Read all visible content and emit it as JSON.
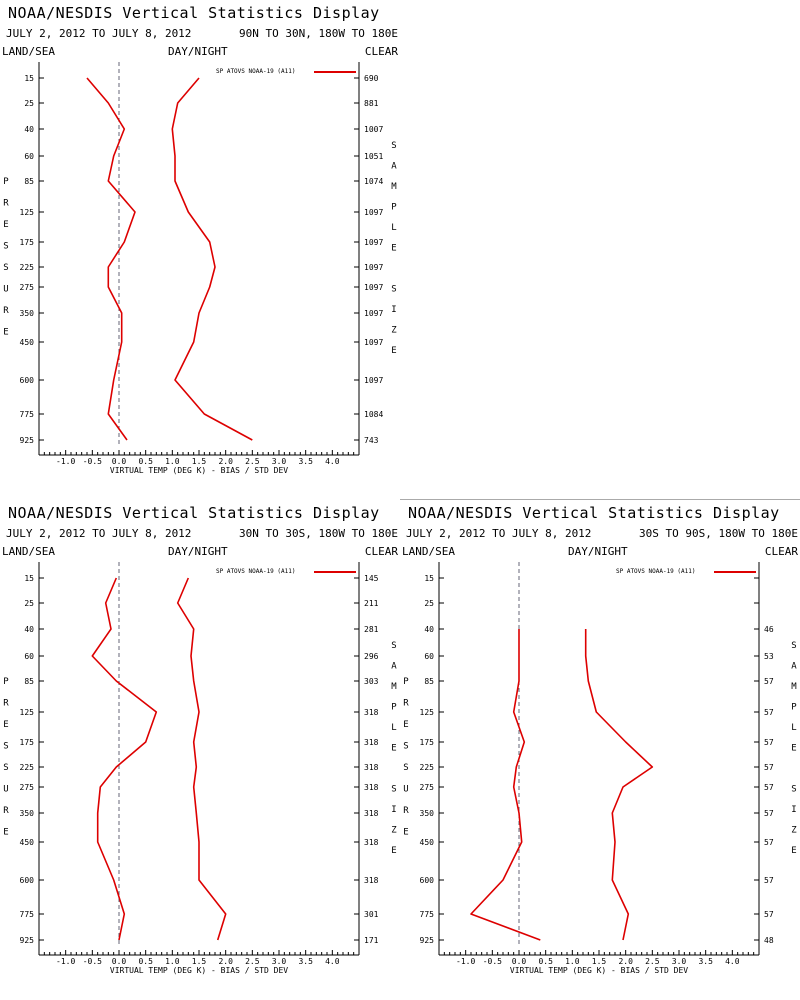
{
  "colors": {
    "series": "#dd0000",
    "axis": "#000000",
    "zero_line": "#666677"
  },
  "panels": [
    {
      "title": "NOAA/NESDIS Vertical Statistics Display",
      "date_range": "JULY 2, 2012 TO JULY 8, 2012",
      "region": "90N TO 30N, 180W TO 180E",
      "left_header": "LAND/SEA",
      "mid_header": "DAY/NIGHT",
      "right_header": "CLEAR",
      "left_axis_title": "PRESSURE",
      "right_axis_title": "SAMPLE SIZE",
      "xlabel": "VIRTUAL TEMP (DEG K) - BIAS / STD DEV",
      "legend": "SP ATOVS NOAA-19 (A11)"
    },
    {
      "title": "NOAA/NESDIS Vertical Statistics Display",
      "date_range": "JULY 2, 2012 TO JULY 8, 2012",
      "region": "30N TO 30S, 180W TO 180E",
      "left_header": "LAND/SEA",
      "mid_header": "DAY/NIGHT",
      "right_header": "CLEAR",
      "left_axis_title": "PRESSURE",
      "right_axis_title": "SAMPLE SIZE",
      "xlabel": "VIRTUAL TEMP (DEG K) - BIAS / STD DEV",
      "legend": "SP ATOVS NOAA-19 (A11)"
    },
    {
      "title": "NOAA/NESDIS Vertical Statistics Display",
      "date_range": "JULY 2, 2012 TO JULY 8, 2012",
      "region": "30S TO 90S, 180W TO 180E",
      "left_header": "LAND/SEA",
      "mid_header": "DAY/NIGHT",
      "right_header": "CLEAR",
      "left_axis_title": "PRESSURE",
      "right_axis_title": "SAMPLE SIZE",
      "xlabel": "VIRTUAL TEMP (DEG K) - BIAS / STD DEV",
      "legend": "SP ATOVS NOAA-19 (A11)"
    }
  ],
  "chart_data": [
    {
      "type": "line",
      "xlim": [
        -1.5,
        4.5
      ],
      "x_ticks": [
        "-1.0",
        "-0.5",
        "0.0",
        "0.5",
        "1.0",
        "1.5",
        "2.0",
        "2.5",
        "3.0",
        "3.5",
        "4.0"
      ],
      "pressure_levels": [
        "15",
        "25",
        "40",
        "60",
        "85",
        "125",
        "175",
        "225",
        "275",
        "350",
        "450",
        "600",
        "775",
        "925"
      ],
      "sample_size": [
        "690",
        "881",
        "1007",
        "1051",
        "1074",
        "1097",
        "1097",
        "1097",
        "1097",
        "1097",
        "1097",
        "1097",
        "1084",
        "743"
      ],
      "series": [
        {
          "name": "SP ATOVS NOAA-19 (A11)",
          "metric": "bias",
          "levels": [
            "15",
            "25",
            "40",
            "60",
            "85",
            "125",
            "175",
            "225",
            "275",
            "350",
            "450",
            "600",
            "775",
            "925"
          ],
          "values": [
            -0.6,
            -0.2,
            0.1,
            -0.1,
            -0.2,
            0.3,
            0.1,
            -0.2,
            -0.2,
            0.05,
            0.05,
            -0.1,
            -0.2,
            0.15
          ]
        },
        {
          "name": "SP ATOVS NOAA-19 (A11)",
          "metric": "std_dev",
          "levels": [
            "15",
            "25",
            "40",
            "60",
            "85",
            "125",
            "175",
            "225",
            "275",
            "350",
            "450",
            "600",
            "775",
            "925"
          ],
          "values": [
            1.5,
            1.1,
            1.0,
            1.05,
            1.05,
            1.3,
            1.7,
            1.8,
            1.7,
            1.5,
            1.4,
            1.05,
            1.6,
            2.5
          ]
        }
      ]
    },
    {
      "type": "line",
      "xlim": [
        -1.5,
        4.5
      ],
      "x_ticks": [
        "-1.0",
        "-0.5",
        "0.0",
        "0.5",
        "1.0",
        "1.5",
        "2.0",
        "2.5",
        "3.0",
        "3.5",
        "4.0"
      ],
      "pressure_levels": [
        "15",
        "25",
        "40",
        "60",
        "85",
        "125",
        "175",
        "225",
        "275",
        "350",
        "450",
        "600",
        "775",
        "925"
      ],
      "sample_size": [
        "145",
        "211",
        "281",
        "296",
        "303",
        "318",
        "318",
        "318",
        "318",
        "318",
        "318",
        "318",
        "301",
        "171"
      ],
      "series": [
        {
          "name": "SP ATOVS NOAA-19 (A11)",
          "metric": "bias",
          "levels": [
            "15",
            "25",
            "40",
            "60",
            "85",
            "125",
            "175",
            "225",
            "275",
            "350",
            "450",
            "600",
            "775",
            "925"
          ],
          "values": [
            -0.05,
            -0.25,
            -0.15,
            -0.5,
            -0.05,
            0.7,
            0.5,
            -0.05,
            -0.35,
            -0.4,
            -0.4,
            -0.1,
            0.1,
            0.0
          ]
        },
        {
          "name": "SP ATOVS NOAA-19 (A11)",
          "metric": "std_dev",
          "levels": [
            "15",
            "25",
            "40",
            "60",
            "85",
            "125",
            "175",
            "225",
            "275",
            "350",
            "450",
            "600",
            "775",
            "925"
          ],
          "values": [
            1.3,
            1.1,
            1.4,
            1.35,
            1.4,
            1.5,
            1.4,
            1.45,
            1.4,
            1.45,
            1.5,
            1.5,
            2.0,
            1.85
          ]
        }
      ]
    },
    {
      "type": "line",
      "xlim": [
        -1.5,
        4.5
      ],
      "x_ticks": [
        "-1.0",
        "-0.5",
        "0.0",
        "0.5",
        "1.0",
        "1.5",
        "2.0",
        "2.5",
        "3.0",
        "3.5",
        "4.0"
      ],
      "pressure_levels": [
        "15",
        "25",
        "40",
        "60",
        "85",
        "125",
        "175",
        "225",
        "275",
        "350",
        "450",
        "600",
        "775",
        "925"
      ],
      "sample_size": [
        "",
        "",
        "46",
        "53",
        "57",
        "57",
        "57",
        "57",
        "57",
        "57",
        "57",
        "57",
        "57",
        "48"
      ],
      "series": [
        {
          "name": "SP ATOVS NOAA-19 (A11)",
          "metric": "bias",
          "levels": [
            "40",
            "60",
            "85",
            "125",
            "175",
            "225",
            "275",
            "350",
            "450",
            "600",
            "775",
            "925"
          ],
          "values": [
            0.0,
            0.0,
            0.0,
            -0.1,
            0.1,
            -0.05,
            -0.1,
            0.0,
            0.05,
            -0.3,
            -0.9,
            0.4
          ]
        },
        {
          "name": "SP ATOVS NOAA-19 (A11)",
          "metric": "std_dev",
          "levels": [
            "40",
            "60",
            "85",
            "125",
            "175",
            "225",
            "275",
            "350",
            "450",
            "600",
            "775",
            "925"
          ],
          "values": [
            1.25,
            1.25,
            1.3,
            1.45,
            2.0,
            2.5,
            1.95,
            1.75,
            1.8,
            1.75,
            2.05,
            1.95
          ]
        }
      ]
    }
  ]
}
